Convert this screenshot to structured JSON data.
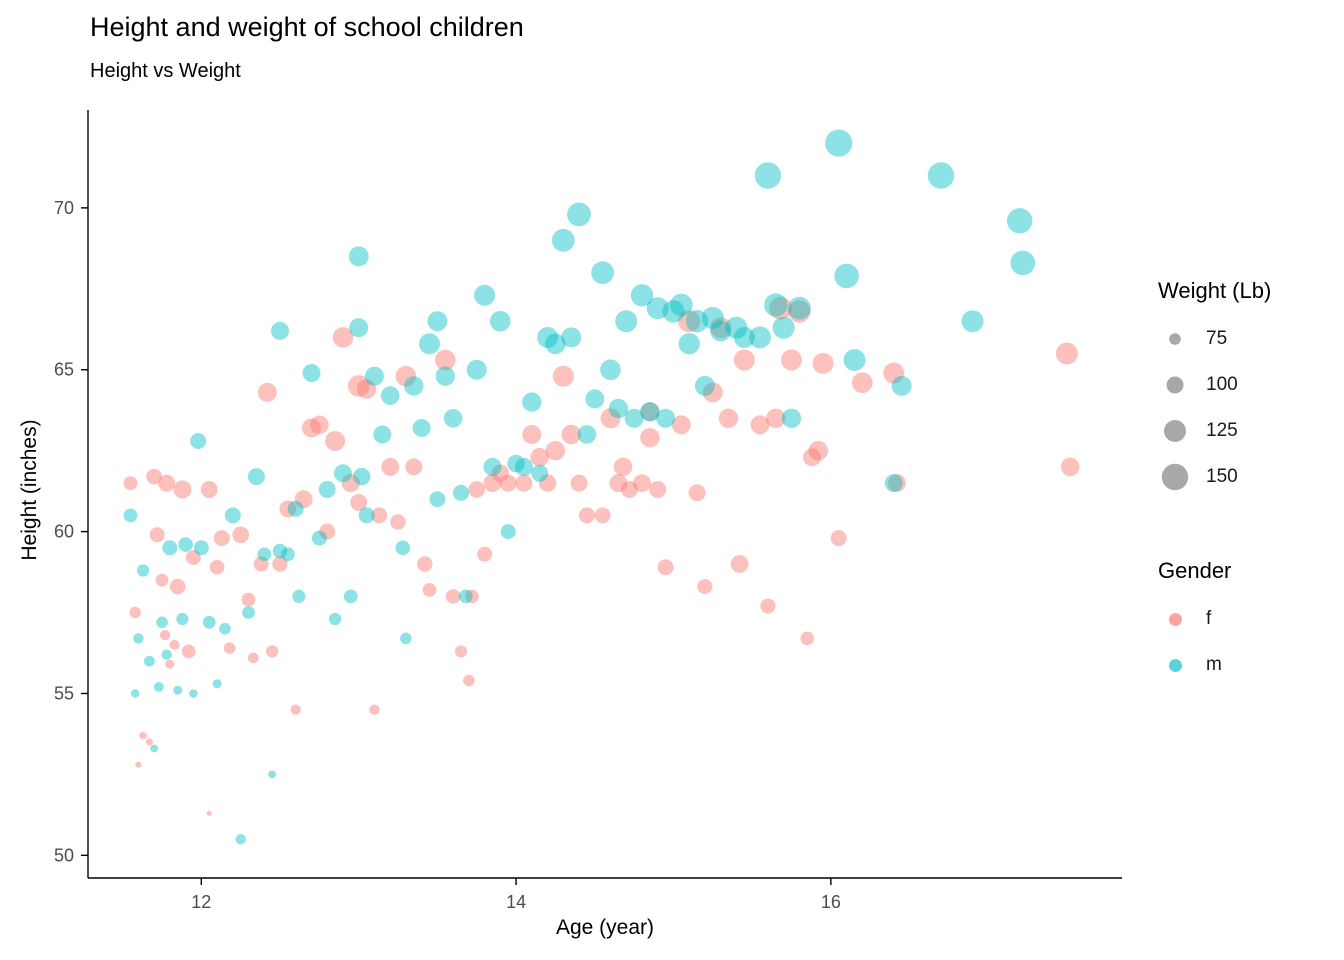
{
  "chart_data": {
    "type": "scatter",
    "mark": "bubble",
    "title": "Height and weight of school children",
    "subtitle": "Height vs Weight",
    "xlabel": "Age (year)",
    "ylabel": "Height (inches)",
    "xlim": [
      11.28,
      17.85
    ],
    "ylim": [
      49.3,
      72.9
    ],
    "x_ticks": [
      12,
      14,
      16
    ],
    "y_ticks": [
      50,
      55,
      60,
      65,
      70
    ],
    "grid": false,
    "background": "#ffffff",
    "point_alpha": 0.45,
    "size_domain": [
      50,
      160
    ],
    "axis_color": "#000000",
    "tick_label_color": "#4d4d4d",
    "legend": {
      "position": "right",
      "size": {
        "title": "Weight (Lb)",
        "values": [
          75,
          100,
          125,
          150
        ],
        "swatch_color": "#8f8f8f"
      },
      "color": {
        "title": "Gender",
        "entries": [
          {
            "label": "f",
            "color": "#F8766D"
          },
          {
            "label": "m",
            "color": "#00BFC4"
          }
        ]
      }
    },
    "points_format": [
      "age_year",
      "height_in",
      "weight_lb",
      "gender"
    ],
    "points": [
      [
        11.55,
        61.5,
        85,
        "f"
      ],
      [
        11.58,
        57.5,
        74,
        "f"
      ],
      [
        11.6,
        52.8,
        54,
        "f"
      ],
      [
        11.63,
        53.7,
        60,
        "f"
      ],
      [
        11.67,
        53.5,
        58,
        "f"
      ],
      [
        11.7,
        61.7,
        94,
        "f"
      ],
      [
        11.72,
        59.9,
        90,
        "f"
      ],
      [
        11.75,
        58.5,
        80,
        "f"
      ],
      [
        11.77,
        56.8,
        70,
        "f"
      ],
      [
        11.78,
        61.5,
        100,
        "f"
      ],
      [
        11.8,
        55.9,
        65,
        "f"
      ],
      [
        11.83,
        56.5,
        69,
        "f"
      ],
      [
        11.85,
        58.3,
        93,
        "f"
      ],
      [
        11.88,
        61.3,
        105,
        "f"
      ],
      [
        11.92,
        56.3,
        85,
        "f"
      ],
      [
        11.95,
        59.2,
        90,
        "f"
      ],
      [
        12.05,
        51.3,
        50.5,
        "f"
      ],
      [
        12.05,
        61.3,
        100,
        "f"
      ],
      [
        12.1,
        58.9,
        88,
        "f"
      ],
      [
        12.13,
        59.8,
        95,
        "f"
      ],
      [
        12.18,
        56.4,
        75,
        "f"
      ],
      [
        12.25,
        59.9,
        98,
        "f"
      ],
      [
        12.3,
        57.9,
        85,
        "f"
      ],
      [
        12.33,
        56.1,
        72,
        "f"
      ],
      [
        12.38,
        59.0,
        90,
        "f"
      ],
      [
        12.42,
        64.3,
        110,
        "f"
      ],
      [
        12.45,
        56.3,
        78,
        "f"
      ],
      [
        12.5,
        59.0,
        92,
        "f"
      ],
      [
        12.55,
        60.7,
        100,
        "f"
      ],
      [
        12.6,
        54.5,
        70,
        "f"
      ],
      [
        12.65,
        61.0,
        105,
        "f"
      ],
      [
        12.7,
        63.2,
        110,
        "f"
      ],
      [
        12.75,
        63.3,
        108,
        "f"
      ],
      [
        12.8,
        60.0,
        95,
        "f"
      ],
      [
        12.85,
        62.8,
        115,
        "f"
      ],
      [
        12.9,
        66.0,
        118,
        "f"
      ],
      [
        12.95,
        61.5,
        106,
        "f"
      ],
      [
        13.0,
        64.5,
        123.5,
        "f"
      ],
      [
        13.0,
        60.9,
        100,
        "f"
      ],
      [
        13.05,
        64.4,
        112,
        "f"
      ],
      [
        13.1,
        54.5,
        70,
        "f"
      ],
      [
        13.13,
        60.5,
        95,
        "f"
      ],
      [
        13.2,
        62.0,
        105,
        "f"
      ],
      [
        13.25,
        60.3,
        92,
        "f"
      ],
      [
        13.3,
        64.8,
        118,
        "f"
      ],
      [
        13.35,
        62.0,
        100,
        "f"
      ],
      [
        13.42,
        59.0,
        92,
        "f"
      ],
      [
        13.45,
        58.2,
        85,
        "f"
      ],
      [
        13.55,
        65.3,
        118,
        "f"
      ],
      [
        13.6,
        58.0,
        88,
        "f"
      ],
      [
        13.65,
        56.3,
        77,
        "f"
      ],
      [
        13.7,
        55.4,
        75,
        "f"
      ],
      [
        13.72,
        58.0,
        84,
        "f"
      ],
      [
        13.75,
        61.3,
        98,
        "f"
      ],
      [
        13.8,
        59.3,
        90,
        "f"
      ],
      [
        13.85,
        61.5,
        105,
        "f"
      ],
      [
        13.9,
        61.8,
        102,
        "f"
      ],
      [
        13.95,
        61.5,
        100,
        "f"
      ],
      [
        14.05,
        61.5,
        100,
        "f"
      ],
      [
        14.1,
        63.0,
        110,
        "f"
      ],
      [
        14.15,
        62.3,
        108,
        "f"
      ],
      [
        14.2,
        61.5,
        102,
        "f"
      ],
      [
        14.25,
        62.5,
        112,
        "f"
      ],
      [
        14.3,
        64.8,
        120,
        "f"
      ],
      [
        14.35,
        63.0,
        112,
        "f"
      ],
      [
        14.4,
        61.5,
        100,
        "f"
      ],
      [
        14.45,
        60.5,
        95,
        "f"
      ],
      [
        14.55,
        60.5,
        95,
        "f"
      ],
      [
        14.6,
        63.5,
        115,
        "f"
      ],
      [
        14.65,
        61.5,
        105,
        "f"
      ],
      [
        14.68,
        62.0,
        108,
        "f"
      ],
      [
        14.72,
        61.3,
        100,
        "f"
      ],
      [
        14.8,
        61.5,
        103.5,
        "f"
      ],
      [
        14.85,
        62.9,
        112,
        "f"
      ],
      [
        14.85,
        63.7,
        110,
        "f"
      ],
      [
        14.9,
        61.3,
        100,
        "f"
      ],
      [
        14.95,
        58.9,
        95,
        "f"
      ],
      [
        15.05,
        63.3,
        110,
        "f"
      ],
      [
        15.1,
        66.5,
        125,
        "f"
      ],
      [
        15.15,
        61.2,
        100,
        "f"
      ],
      [
        15.2,
        58.3,
        90,
        "f"
      ],
      [
        15.25,
        64.3,
        115,
        "f"
      ],
      [
        15.3,
        66.3,
        120,
        "f"
      ],
      [
        15.35,
        63.5,
        112,
        "f"
      ],
      [
        15.42,
        59.0,
        104,
        "f"
      ],
      [
        15.45,
        65.3,
        120,
        "f"
      ],
      [
        15.55,
        63.3,
        110,
        "f"
      ],
      [
        15.6,
        57.7,
        90,
        "f"
      ],
      [
        15.65,
        63.5,
        112,
        "f"
      ],
      [
        15.68,
        66.9,
        130,
        "f"
      ],
      [
        15.75,
        65.3,
        120,
        "f"
      ],
      [
        15.8,
        66.8,
        128,
        "f"
      ],
      [
        15.85,
        56.7,
        84,
        "f"
      ],
      [
        15.88,
        62.3,
        105,
        "f"
      ],
      [
        15.92,
        62.5,
        112.5,
        "f"
      ],
      [
        15.95,
        65.2,
        120,
        "f"
      ],
      [
        16.05,
        59.8,
        95,
        "f"
      ],
      [
        16.2,
        64.6,
        118,
        "f"
      ],
      [
        16.4,
        64.9,
        120,
        "f"
      ],
      [
        16.42,
        61.5,
        105,
        "f"
      ],
      [
        17.5,
        65.5,
        125,
        "f"
      ],
      [
        17.52,
        62.0,
        108,
        "f"
      ],
      [
        11.55,
        60.5,
        85,
        "m"
      ],
      [
        11.58,
        55.0,
        62,
        "m"
      ],
      [
        11.6,
        56.7,
        70,
        "m"
      ],
      [
        11.63,
        58.8,
        78,
        "m"
      ],
      [
        11.67,
        56.0,
        72,
        "m"
      ],
      [
        11.7,
        53.3,
        60,
        "m"
      ],
      [
        11.73,
        55.2,
        68,
        "m"
      ],
      [
        11.75,
        57.2,
        75,
        "m"
      ],
      [
        11.78,
        56.2,
        70,
        "m"
      ],
      [
        11.8,
        59.5,
        90,
        "m"
      ],
      [
        11.85,
        55.1,
        65,
        "m"
      ],
      [
        11.88,
        57.3,
        78,
        "m"
      ],
      [
        11.9,
        59.6,
        88,
        "m"
      ],
      [
        11.95,
        55.0,
        63,
        "m"
      ],
      [
        11.98,
        62.8,
        95,
        "m"
      ],
      [
        12.0,
        59.5,
        90,
        "m"
      ],
      [
        12.05,
        57.2,
        80,
        "m"
      ],
      [
        12.1,
        55.3,
        65,
        "m"
      ],
      [
        12.15,
        57.0,
        75,
        "m"
      ],
      [
        12.2,
        60.5,
        95,
        "m"
      ],
      [
        12.25,
        50.5,
        70,
        "m"
      ],
      [
        12.3,
        57.5,
        80,
        "m"
      ],
      [
        12.35,
        61.7,
        100,
        "m"
      ],
      [
        12.4,
        59.3,
        85,
        "m"
      ],
      [
        12.45,
        52.5,
        60,
        "m"
      ],
      [
        12.5,
        66.2,
        105,
        "m"
      ],
      [
        12.5,
        59.4,
        88,
        "m"
      ],
      [
        12.55,
        59.3,
        85,
        "m"
      ],
      [
        12.6,
        60.7,
        95,
        "m"
      ],
      [
        12.62,
        58.0,
        82,
        "m"
      ],
      [
        12.7,
        64.9,
        105,
        "m"
      ],
      [
        12.75,
        59.8,
        90,
        "m"
      ],
      [
        12.8,
        61.3,
        100,
        "m"
      ],
      [
        12.85,
        57.3,
        78,
        "m"
      ],
      [
        12.9,
        61.8,
        105,
        "m"
      ],
      [
        12.95,
        58.0,
        85,
        "m"
      ],
      [
        13.0,
        68.5,
        115,
        "m"
      ],
      [
        13.0,
        66.3,
        110,
        "m"
      ],
      [
        13.02,
        61.7,
        102,
        "m"
      ],
      [
        13.05,
        60.5,
        95,
        "m"
      ],
      [
        13.1,
        64.8,
        110,
        "m"
      ],
      [
        13.15,
        63.0,
        105,
        "m"
      ],
      [
        13.2,
        64.2,
        108,
        "m"
      ],
      [
        13.28,
        59.5,
        88,
        "m"
      ],
      [
        13.3,
        56.7,
        75,
        "m"
      ],
      [
        13.35,
        64.5,
        112,
        "m"
      ],
      [
        13.4,
        63.2,
        105,
        "m"
      ],
      [
        13.45,
        65.8,
        120,
        "m"
      ],
      [
        13.5,
        66.5,
        115,
        "m"
      ],
      [
        13.5,
        61.0,
        95,
        "m"
      ],
      [
        13.55,
        64.8,
        112,
        "m"
      ],
      [
        13.6,
        63.5,
        108,
        "m"
      ],
      [
        13.65,
        61.2,
        96,
        "m"
      ],
      [
        13.68,
        58.0,
        85,
        "m"
      ],
      [
        13.75,
        65.0,
        115,
        "m"
      ],
      [
        13.8,
        67.3,
        120,
        "m"
      ],
      [
        13.85,
        62.0,
        105,
        "m"
      ],
      [
        13.9,
        66.5,
        118,
        "m"
      ],
      [
        13.95,
        60.0,
        90,
        "m"
      ],
      [
        14.0,
        62.1,
        103,
        "m"
      ],
      [
        14.05,
        62.0,
        105,
        "m"
      ],
      [
        14.1,
        64.0,
        112,
        "m"
      ],
      [
        14.15,
        61.8,
        100,
        "m"
      ],
      [
        14.2,
        66.0,
        120,
        "m"
      ],
      [
        14.25,
        65.8,
        118,
        "m"
      ],
      [
        14.3,
        69.0,
        130,
        "m"
      ],
      [
        14.35,
        66.0,
        115,
        "m"
      ],
      [
        14.4,
        69.8,
        135,
        "m"
      ],
      [
        14.45,
        63.0,
        108,
        "m"
      ],
      [
        14.5,
        64.1,
        110,
        "m"
      ],
      [
        14.55,
        68.0,
        130,
        "m"
      ],
      [
        14.6,
        65.0,
        118,
        "m"
      ],
      [
        14.65,
        63.8,
        112,
        "m"
      ],
      [
        14.7,
        66.5,
        125,
        "m"
      ],
      [
        14.75,
        63.5,
        110,
        "m"
      ],
      [
        14.8,
        67.3,
        128,
        "m"
      ],
      [
        14.85,
        63.7,
        112,
        "m"
      ],
      [
        14.9,
        66.9,
        125,
        "m"
      ],
      [
        14.95,
        63.5,
        110,
        "m"
      ],
      [
        15.0,
        66.8,
        128,
        "m"
      ],
      [
        15.05,
        67.0,
        130,
        "m"
      ],
      [
        15.1,
        65.8,
        122,
        "m"
      ],
      [
        15.15,
        66.5,
        128,
        "m"
      ],
      [
        15.2,
        64.5,
        115,
        "m"
      ],
      [
        15.25,
        66.6,
        125,
        "m"
      ],
      [
        15.3,
        66.2,
        120,
        "m"
      ],
      [
        15.4,
        66.3,
        125,
        "m"
      ],
      [
        15.45,
        66.0,
        120,
        "m"
      ],
      [
        15.55,
        66.0,
        125,
        "m"
      ],
      [
        15.6,
        71.0,
        150,
        "m"
      ],
      [
        15.65,
        67.0,
        133,
        "m"
      ],
      [
        15.7,
        66.3,
        125,
        "m"
      ],
      [
        15.75,
        63.5,
        112,
        "m"
      ],
      [
        15.8,
        66.9,
        130,
        "m"
      ],
      [
        16.05,
        72.0,
        155,
        "m"
      ],
      [
        16.1,
        67.9,
        140,
        "m"
      ],
      [
        16.15,
        65.3,
        125,
        "m"
      ],
      [
        16.4,
        61.5,
        105,
        "m"
      ],
      [
        16.45,
        64.5,
        115,
        "m"
      ],
      [
        16.7,
        71.0,
        150,
        "m"
      ],
      [
        16.9,
        66.5,
        125,
        "m"
      ],
      [
        17.2,
        69.6,
        145,
        "m"
      ],
      [
        17.22,
        68.3,
        140,
        "m"
      ]
    ]
  }
}
